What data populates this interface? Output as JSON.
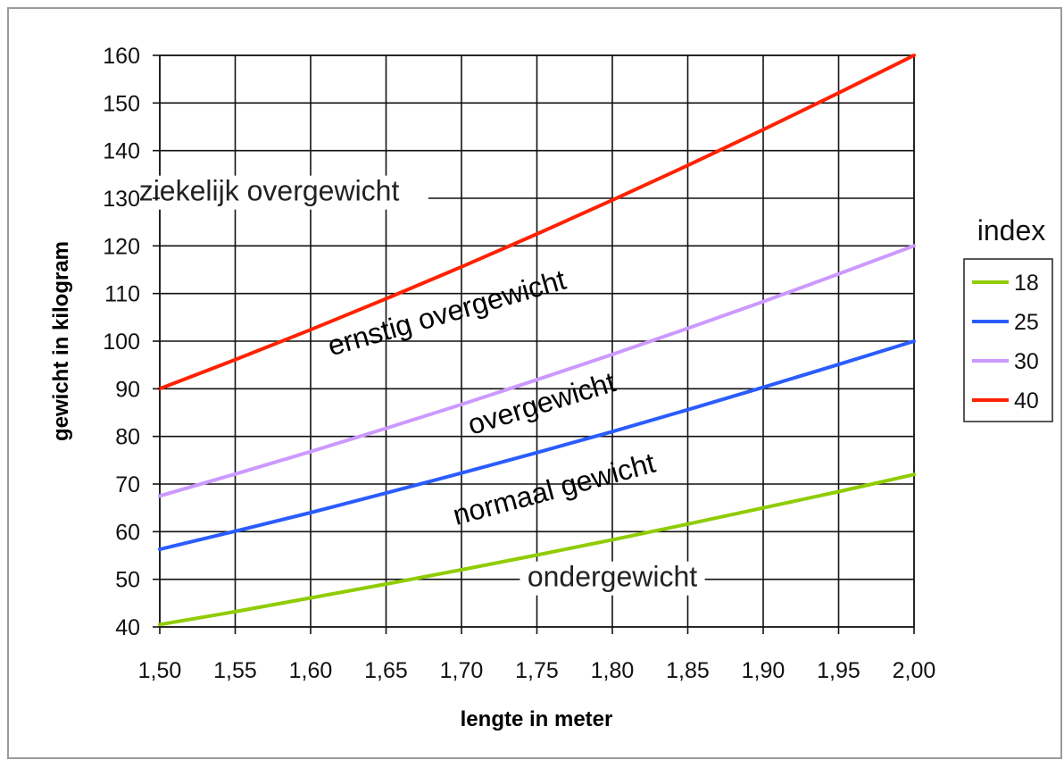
{
  "chart_data": {
    "type": "line",
    "xlabel": "lengte in meter",
    "ylabel": "gewicht in kilogram",
    "xlim": [
      1.5,
      2.0
    ],
    "ylim": [
      40,
      160
    ],
    "x_ticks": [
      "1,50",
      "1,55",
      "1,60",
      "1,65",
      "1,70",
      "1,75",
      "1,80",
      "1,85",
      "1,90",
      "1,95",
      "2,00"
    ],
    "y_ticks": [
      "40",
      "50",
      "60",
      "70",
      "80",
      "90",
      "100",
      "110",
      "120",
      "130",
      "140",
      "150",
      "160"
    ],
    "x": [
      1.5,
      1.55,
      1.6,
      1.65,
      1.7,
      1.75,
      1.8,
      1.85,
      1.9,
      1.95,
      2.0
    ],
    "grid": true,
    "legend": {
      "title": "index",
      "placement": "right"
    },
    "series": [
      {
        "name": "18",
        "color": "#8fcc00",
        "values": [
          40.5,
          43.2,
          46.1,
          49.0,
          52.0,
          55.1,
          58.3,
          61.6,
          65.0,
          68.4,
          72.0
        ]
      },
      {
        "name": "25",
        "color": "#2a5cff",
        "values": [
          56.3,
          60.1,
          64.0,
          68.1,
          72.3,
          76.6,
          81.0,
          85.6,
          90.3,
          95.1,
          100.0
        ]
      },
      {
        "name": "30",
        "color": "#cc99ff",
        "values": [
          67.5,
          72.1,
          76.8,
          81.7,
          86.7,
          91.9,
          97.2,
          102.7,
          108.3,
          114.1,
          120.0
        ]
      },
      {
        "name": "40",
        "color": "#ff2200",
        "values": [
          90.0,
          96.1,
          102.4,
          108.9,
          115.6,
          122.5,
          129.6,
          136.9,
          144.4,
          152.1,
          160.0
        ]
      }
    ],
    "annotations": [
      {
        "text": "ziekelijk overgewicht",
        "x": 1.5725,
        "y": 129.5,
        "angle": 0,
        "style": "light"
      },
      {
        "text": "ernstig overgewicht",
        "x": 1.692,
        "y": 104,
        "angle": -16,
        "style": "dark"
      },
      {
        "text": "overgewicht",
        "x": 1.755,
        "y": 85,
        "angle": -17,
        "style": "dark"
      },
      {
        "text": "normaal gewicht",
        "x": 1.763,
        "y": 67,
        "angle": -15,
        "style": "dark"
      },
      {
        "text": "ondergewicht",
        "x": 1.8,
        "y": 48.5,
        "angle": 0,
        "style": "light"
      }
    ]
  }
}
